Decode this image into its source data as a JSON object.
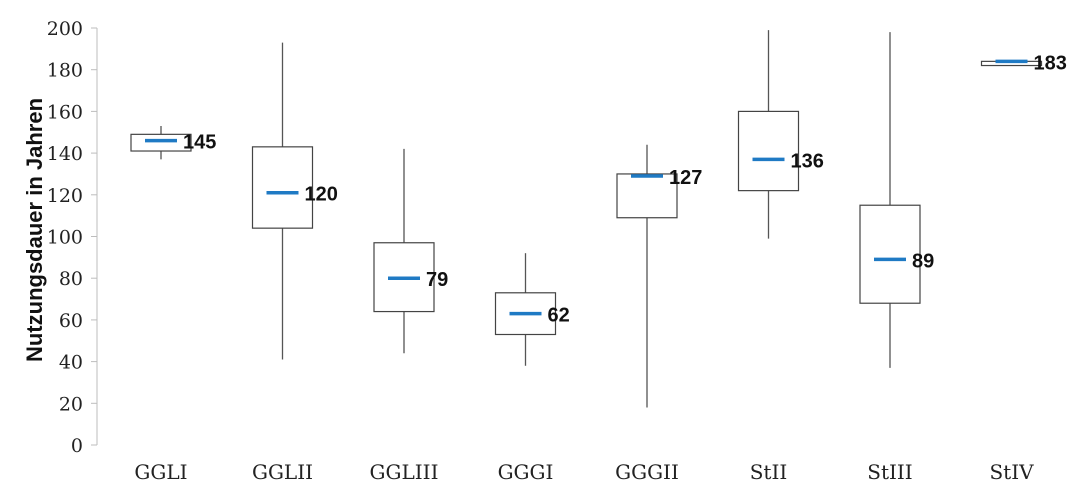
{
  "chart_data": {
    "type": "box",
    "ylabel": "Nutzungsdauer in Jahren",
    "xlabel": "",
    "ylim": [
      0,
      200
    ],
    "yticks": [
      0,
      20,
      40,
      60,
      80,
      100,
      120,
      140,
      160,
      180,
      200
    ],
    "grid": false,
    "legend": "none",
    "colors": {
      "median": "#1f7ac4",
      "box": "#444444",
      "whisker": "#555555"
    },
    "categories": [
      "GGLI",
      "GGLII",
      "GGLIII",
      "GGGI",
      "GGGII",
      "StII",
      "StIII",
      "StIV"
    ],
    "boxes": [
      {
        "category": "GGLI",
        "whisker_low": 137,
        "q1": 141,
        "median": 146,
        "q3": 149,
        "whisker_high": 153,
        "label": "145"
      },
      {
        "category": "GGLII",
        "whisker_low": 41,
        "q1": 104,
        "median": 121,
        "q3": 143,
        "whisker_high": 193,
        "label": "120"
      },
      {
        "category": "GGLIII",
        "whisker_low": 44,
        "q1": 64,
        "median": 80,
        "q3": 97,
        "whisker_high": 142,
        "label": "79"
      },
      {
        "category": "GGGI",
        "whisker_low": 38,
        "q1": 53,
        "median": 63,
        "q3": 73,
        "whisker_high": 92,
        "label": "62"
      },
      {
        "category": "GGGII",
        "whisker_low": 18,
        "q1": 109,
        "median": 129,
        "q3": 130,
        "whisker_high": 144,
        "label": "127"
      },
      {
        "category": "StII",
        "whisker_low": 99,
        "q1": 122,
        "median": 137,
        "q3": 160,
        "whisker_high": 199,
        "label": "136"
      },
      {
        "category": "StIII",
        "whisker_low": 37,
        "q1": 68,
        "median": 89,
        "q3": 115,
        "whisker_high": 198,
        "label": "89"
      },
      {
        "category": "StIV",
        "whisker_low": 182,
        "q1": 182,
        "median": 184,
        "q3": 184,
        "whisker_high": 184,
        "label": "183"
      }
    ]
  }
}
